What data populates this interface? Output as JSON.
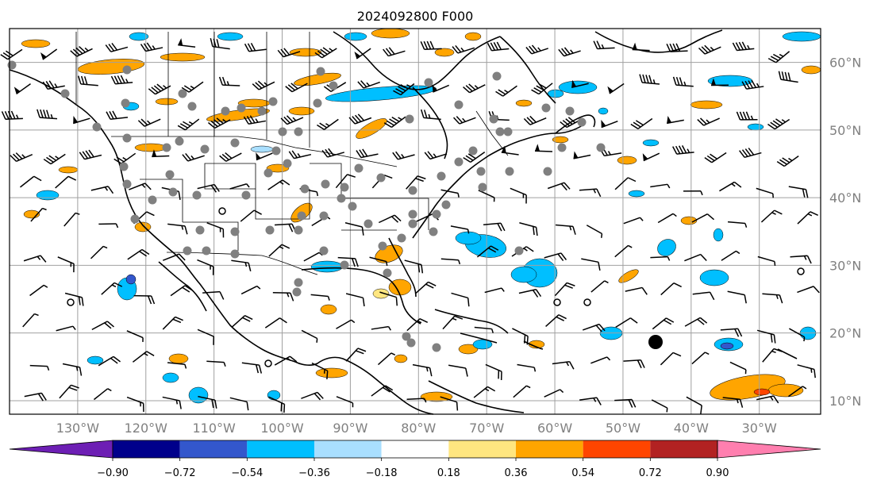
{
  "title": "2024092800 F000",
  "lat_labels": [
    "60°N",
    "50°N",
    "40°N",
    "30°N",
    "20°N",
    "10°N"
  ],
  "lat_values": [
    60,
    50,
    40,
    30,
    20,
    10
  ],
  "lon_labels": [
    "130°W",
    "120°W",
    "110°W",
    "100°W",
    "90°W",
    "80°W",
    "70°W",
    "60°W",
    "50°W",
    "40°W",
    "30°W"
  ],
  "lon_values": [
    -130,
    -120,
    -110,
    -100,
    -90,
    -80,
    -70,
    -60,
    -50,
    -40,
    -30
  ],
  "map_extent": {
    "lon_min": -140,
    "lon_max": -21,
    "lat_min": 8,
    "lat_max": 65
  },
  "colorbar": {
    "ticks": [
      "−0.90",
      "−0.72",
      "−0.54",
      "−0.36",
      "−0.18",
      "0.18",
      "0.36",
      "0.54",
      "0.72",
      "0.90"
    ],
    "colors": [
      "#6d1fb4",
      "#00008b",
      "#3357cc",
      "#00bfff",
      "#a9dfff",
      "#ffffff",
      "#ffe680",
      "#ffa500",
      "#ff4500",
      "#b22222",
      "#ff7faf"
    ]
  },
  "field_colors": {
    "neg_light": "#a9dfff",
    "neg_mid": "#00bfff",
    "neg_strong": "#3357cc",
    "pos_light": "#ffe680",
    "pos_mid": "#ffa500",
    "pos_strong": "#ff4500"
  },
  "station_color": "#808080"
}
